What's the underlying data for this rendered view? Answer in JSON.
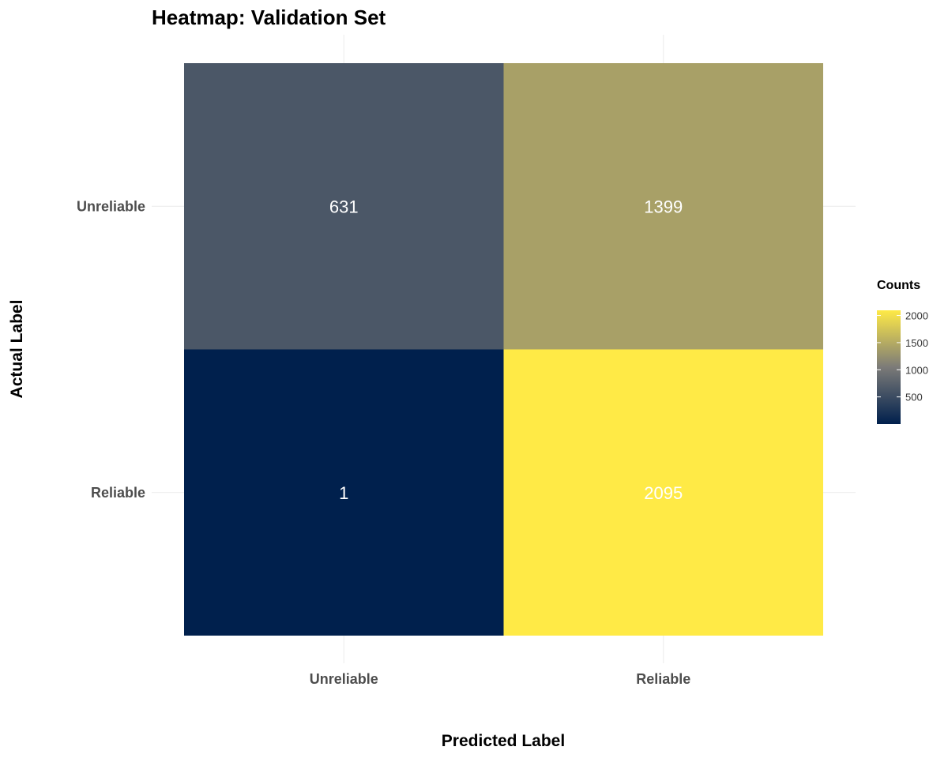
{
  "chart_data": {
    "type": "heatmap",
    "title": "Heatmap: Validation Set",
    "xlabel": "Predicted Label",
    "ylabel": "Actual Label",
    "x_categories": [
      "Unreliable",
      "Reliable"
    ],
    "y_categories": [
      "Unreliable",
      "Reliable"
    ],
    "cells": [
      {
        "x": "Unreliable",
        "y": "Unreliable",
        "value": 631,
        "label": "631"
      },
      {
        "x": "Reliable",
        "y": "Unreliable",
        "value": 1399,
        "label": "1399"
      },
      {
        "x": "Unreliable",
        "y": "Reliable",
        "value": 1,
        "label": "1"
      },
      {
        "x": "Reliable",
        "y": "Reliable",
        "value": 2095,
        "label": "2095"
      }
    ],
    "legend": {
      "title": "Counts",
      "placement": "right",
      "ticks": [
        500,
        1000,
        1500,
        2000
      ],
      "tick_labels": [
        "500",
        "1000",
        "1500",
        "2000"
      ],
      "range": [
        1,
        2095
      ]
    },
    "colors": {
      "low": "#00204d",
      "mid": "#7c7b78",
      "high": "#ffea46",
      "cell_text": "#ffffff",
      "grid": "#ebebeb"
    },
    "grid": true
  }
}
